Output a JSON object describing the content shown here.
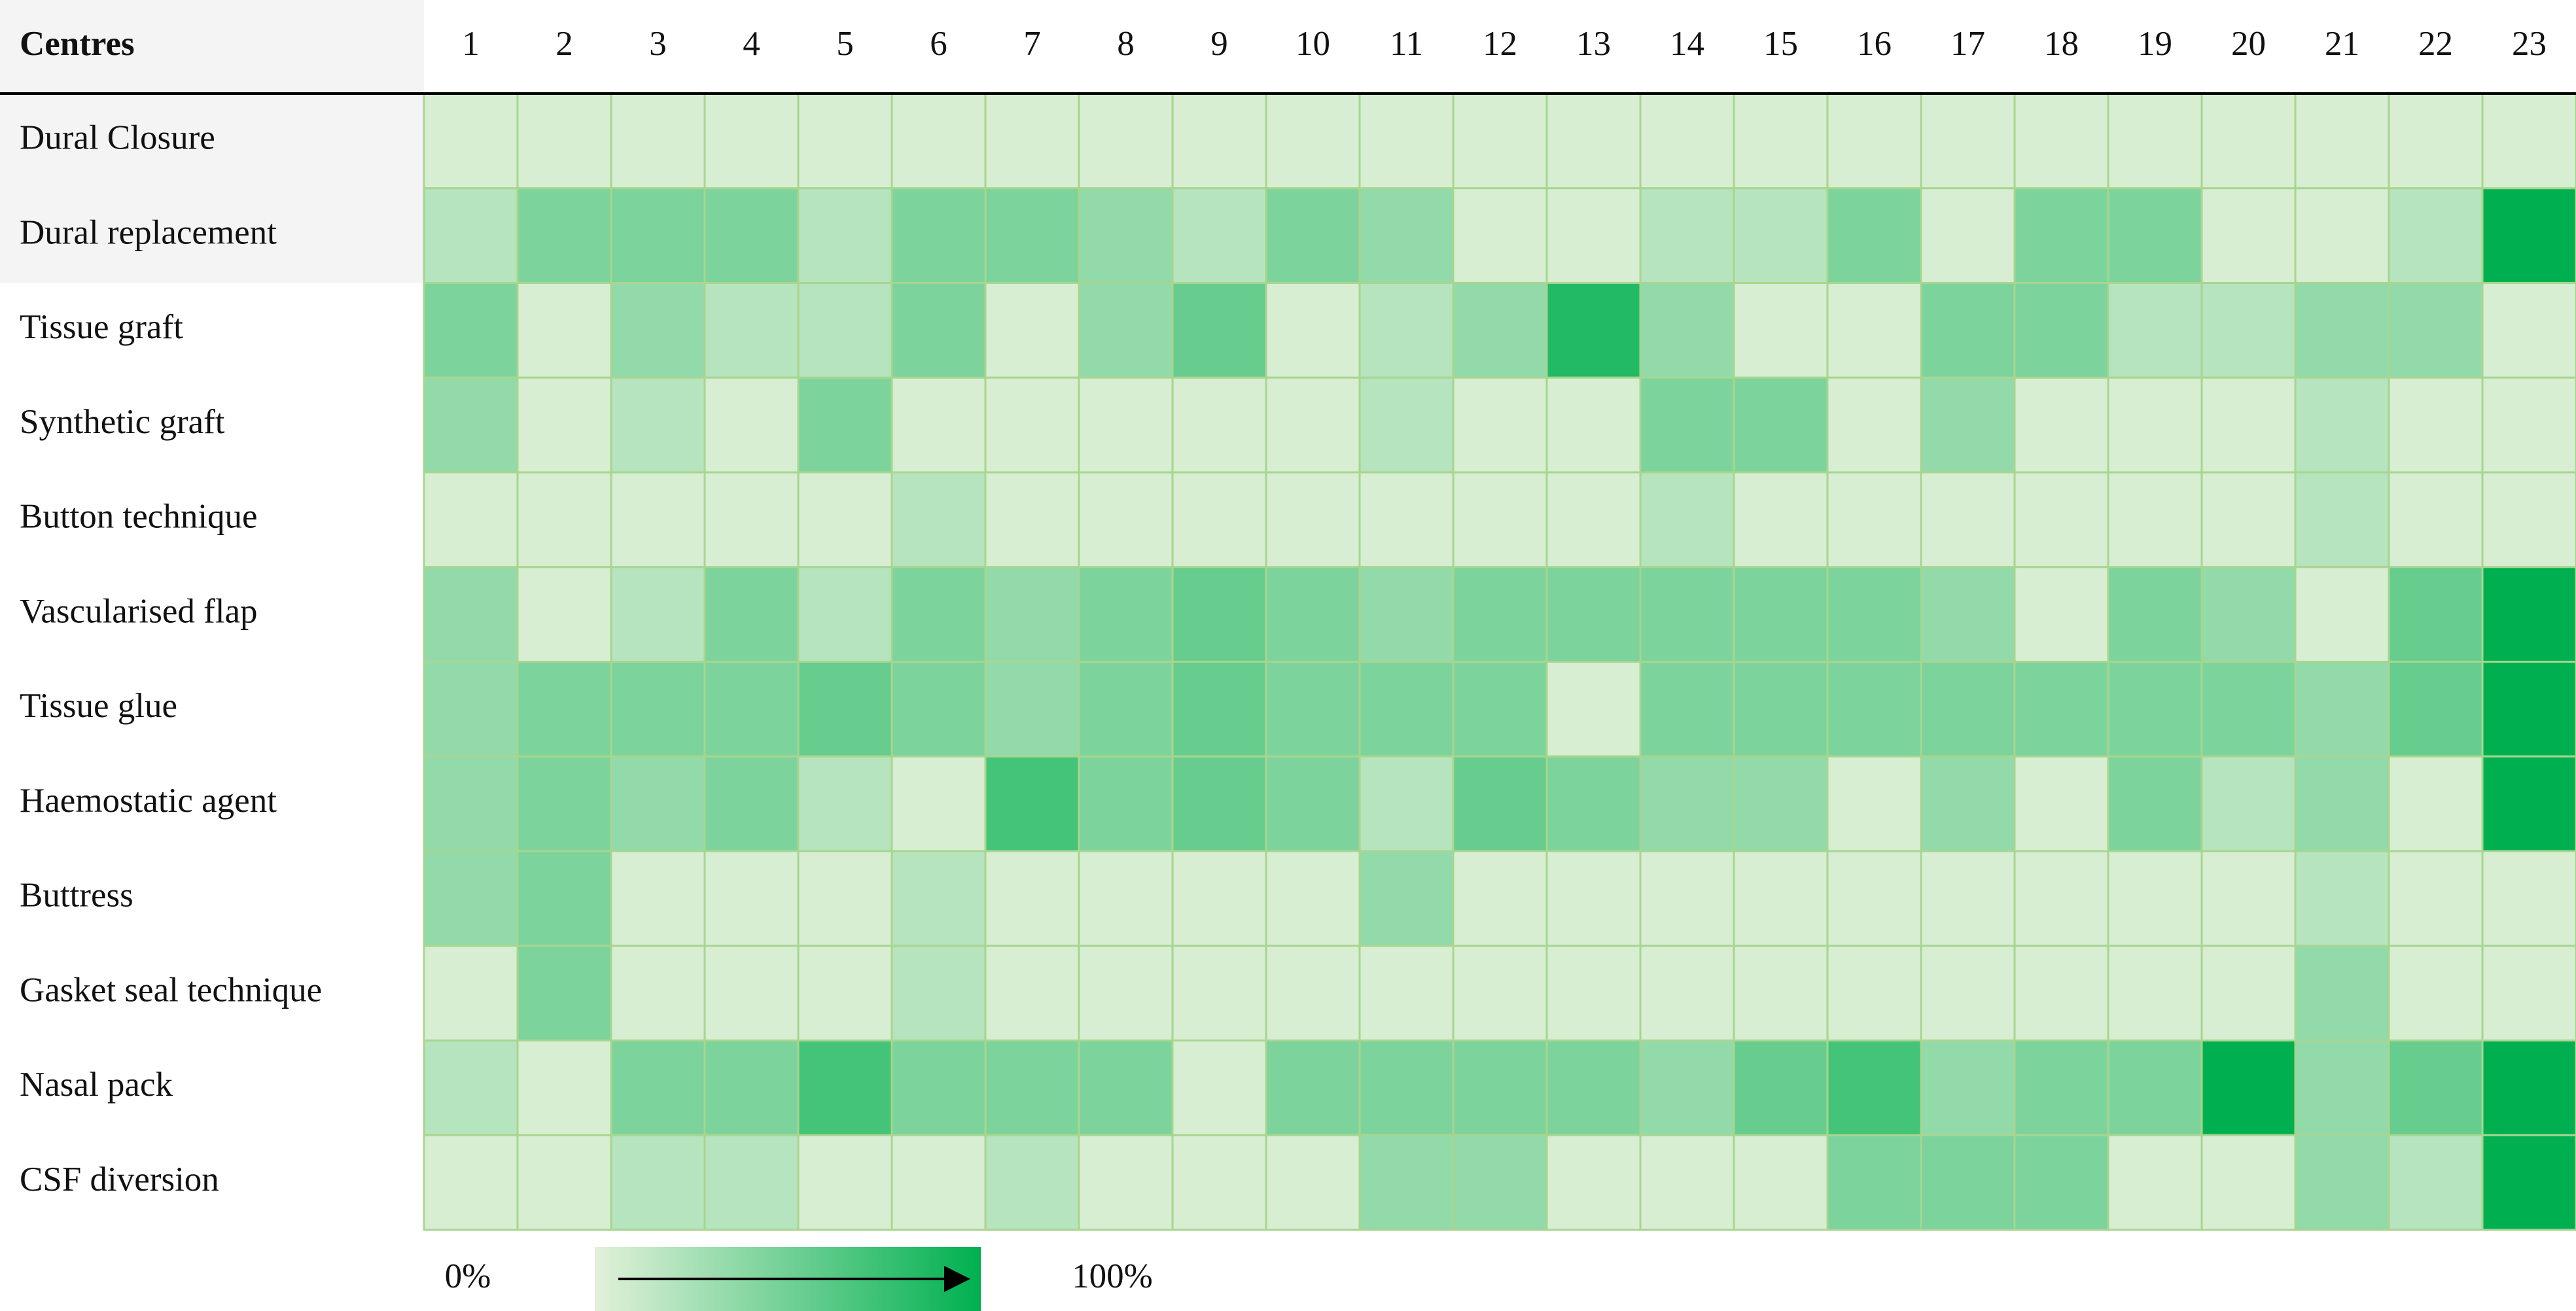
{
  "chart_data": {
    "type": "heatmap",
    "corner_label": "Centres",
    "x_categories": [
      "1",
      "2",
      "3",
      "4",
      "5",
      "6",
      "7",
      "8",
      "9",
      "10",
      "11",
      "12",
      "13",
      "14",
      "15",
      "16",
      "17",
      "18",
      "19",
      "20",
      "21",
      "22",
      "23"
    ],
    "y_categories": [
      "Dural Closure",
      "Dural replacement",
      "Tissue graft",
      "Synthetic graft",
      "Button technique",
      "Vascularised flap",
      "Tissue glue",
      "Haemostatic agent",
      "Buttress",
      "Gasket seal technique",
      "Nasal pack",
      "CSF diversion"
    ],
    "values": [
      [
        5,
        5,
        5,
        5,
        5,
        5,
        5,
        5,
        5,
        5,
        5,
        5,
        5,
        5,
        5,
        5,
        5,
        5,
        5,
        5,
        5,
        5,
        5
      ],
      [
        20,
        45,
        45,
        45,
        20,
        45,
        45,
        35,
        20,
        45,
        35,
        5,
        5,
        20,
        20,
        45,
        5,
        45,
        45,
        5,
        5,
        20,
        100
      ],
      [
        45,
        5,
        35,
        20,
        20,
        45,
        5,
        35,
        55,
        5,
        20,
        35,
        85,
        35,
        5,
        5,
        45,
        45,
        20,
        20,
        35,
        35,
        5
      ],
      [
        35,
        5,
        20,
        5,
        45,
        5,
        5,
        5,
        5,
        5,
        20,
        5,
        5,
        45,
        45,
        5,
        35,
        5,
        5,
        5,
        20,
        5,
        5
      ],
      [
        5,
        5,
        5,
        5,
        5,
        20,
        5,
        5,
        5,
        5,
        5,
        5,
        5,
        20,
        5,
        5,
        5,
        5,
        5,
        5,
        20,
        5,
        5
      ],
      [
        35,
        5,
        20,
        45,
        20,
        45,
        35,
        45,
        55,
        45,
        35,
        45,
        45,
        45,
        45,
        45,
        35,
        5,
        45,
        35,
        5,
        55,
        100
      ],
      [
        35,
        45,
        45,
        45,
        55,
        45,
        35,
        45,
        55,
        45,
        45,
        45,
        5,
        45,
        45,
        45,
        45,
        45,
        45,
        45,
        35,
        55,
        100
      ],
      [
        35,
        45,
        35,
        45,
        20,
        5,
        70,
        45,
        55,
        45,
        20,
        55,
        45,
        35,
        35,
        5,
        35,
        5,
        45,
        20,
        35,
        5,
        100
      ],
      [
        35,
        45,
        5,
        5,
        5,
        20,
        5,
        5,
        5,
        5,
        35,
        5,
        5,
        5,
        5,
        5,
        5,
        5,
        5,
        5,
        20,
        5,
        5
      ],
      [
        5,
        45,
        5,
        5,
        5,
        20,
        5,
        5,
        5,
        5,
        5,
        5,
        5,
        5,
        5,
        5,
        5,
        5,
        5,
        5,
        35,
        5,
        5
      ],
      [
        20,
        5,
        45,
        45,
        70,
        45,
        45,
        45,
        5,
        45,
        45,
        45,
        45,
        35,
        55,
        70,
        35,
        45,
        45,
        100,
        35,
        55,
        100
      ],
      [
        5,
        5,
        20,
        20,
        5,
        5,
        20,
        5,
        5,
        5,
        35,
        35,
        5,
        5,
        5,
        45,
        45,
        45,
        5,
        5,
        35,
        20,
        100
      ]
    ],
    "zlim": [
      0,
      100
    ],
    "color_range": [
      "#e2f1da",
      "#00b050"
    ],
    "colorbar_ticks": [
      {
        "value": 0,
        "label": "0%"
      },
      {
        "value": 100,
        "label": "100%"
      }
    ]
  }
}
